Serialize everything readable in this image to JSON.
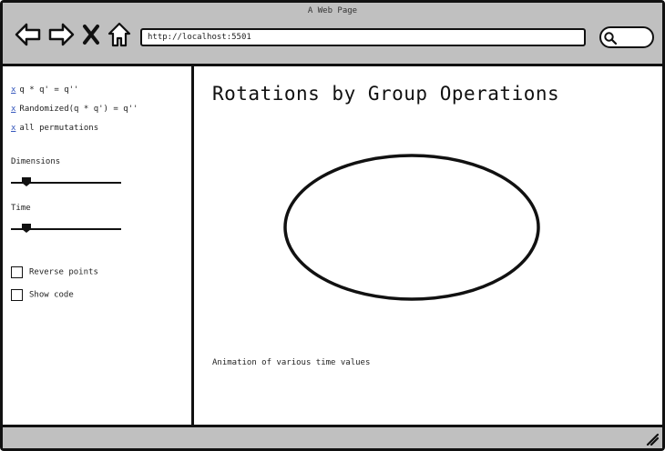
{
  "window": {
    "title": "A Web Page"
  },
  "toolbar": {
    "icons": {
      "back": "arrow-left-icon",
      "forward": "arrow-right-icon",
      "stop": "close-icon",
      "home": "home-icon",
      "search": "search-icon"
    },
    "url": "http://localhost:5501"
  },
  "sidebar": {
    "options": [
      {
        "marker": "x",
        "label": "q * q' = q''"
      },
      {
        "marker": "x",
        "label": "Randomized(q * q') = q''"
      },
      {
        "marker": "x",
        "label": "all permutations"
      }
    ],
    "dimensions": {
      "label": "Dimensions",
      "value": 0.1
    },
    "time": {
      "label": "Time",
      "value": 0.1
    },
    "checkboxes": [
      {
        "label": "Reverse points",
        "checked": false
      },
      {
        "label": "Show code",
        "checked": false
      }
    ]
  },
  "main": {
    "title": "Rotations by Group Operations",
    "caption": "Animation of various time values"
  }
}
